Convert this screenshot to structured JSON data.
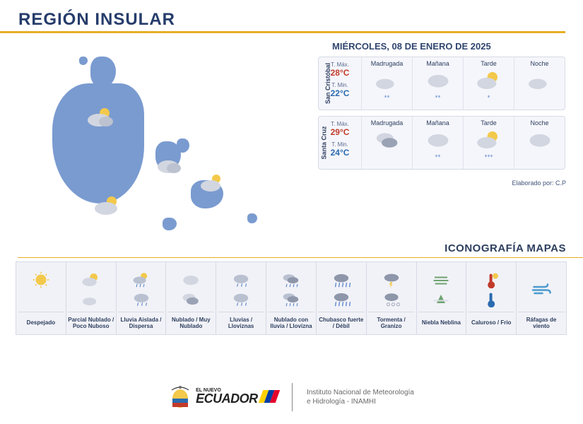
{
  "title": "REGIÓN INSULAR",
  "date": "MIÉRCOLES, 08 DE ENERO DE 2025",
  "credit": "Elaborado por: C.P",
  "iconography_title": "ICONOGRAFÍA MAPAS",
  "colors": {
    "title": "#263c6b",
    "underline": "#e7ae25",
    "island": "#7a9bd0",
    "panel_bg": "#f5f6fb",
    "border": "#d6dae6",
    "tmax": "#c23a2a",
    "tmin": "#2a6bb0",
    "flag_yellow": "#ffd100",
    "flag_blue": "#003da5",
    "flag_red": "#e4002b"
  },
  "periods": [
    "Madrugada",
    "Mañana",
    "Tarde",
    "Noche"
  ],
  "locations": [
    {
      "name": "San Cristóbal",
      "tmax_label": "T. Máx.",
      "tmax": "28°C",
      "tmin_label": "T. Min.",
      "tmin": "22°C",
      "forecast": [
        {
          "icon": "moon-cloud",
          "drops": "⁎⁎"
        },
        {
          "icon": "cloud",
          "drops": "⁎⁎"
        },
        {
          "icon": "sun-cloud",
          "drops": "⁎"
        },
        {
          "icon": "moon-cloud",
          "drops": ""
        }
      ]
    },
    {
      "name": "Santa Cruz",
      "tmax_label": "T. Máx.",
      "tmax": "29°C",
      "tmin_label": "T. Min.",
      "tmin": "24°C",
      "forecast": [
        {
          "icon": "clouds",
          "drops": ""
        },
        {
          "icon": "cloud",
          "drops": "⁎⁎"
        },
        {
          "icon": "sun-cloud",
          "drops": "⁎⁎⁎"
        },
        {
          "icon": "cloud",
          "drops": ""
        }
      ]
    }
  ],
  "legend": [
    {
      "label": "Despejado",
      "icons": [
        "sun",
        "moon"
      ]
    },
    {
      "label": "Parcial Nublado / Poco Nuboso",
      "icons": [
        "sun-cloud",
        "moon-cloud"
      ]
    },
    {
      "label": "Lluvia Aislada / Dispersa",
      "icons": [
        "sun-rain",
        "cloud-rain"
      ]
    },
    {
      "label": "Nublado / Muy Nublado",
      "icons": [
        "cloud",
        "clouds"
      ]
    },
    {
      "label": "Lluvias / Lloviznas",
      "icons": [
        "cloud-rain",
        "cloud-rain2"
      ]
    },
    {
      "label": "Nublado con lluvia / Llovizna",
      "icons": [
        "clouds-rain",
        "clouds-rain"
      ]
    },
    {
      "label": "Chubasco fuerte / Débil",
      "icons": [
        "heavy-rain",
        "heavy-rain"
      ]
    },
    {
      "label": "Tormenta / Granizo",
      "icons": [
        "storm",
        "hail"
      ]
    },
    {
      "label": "Niebla Neblina",
      "icons": [
        "fog",
        "fog2"
      ]
    },
    {
      "label": "Caluroso / Frio",
      "icons": [
        "therm-hot",
        "therm-cold"
      ]
    },
    {
      "label": "Ráfagas de viento",
      "icons": [
        "wind"
      ]
    }
  ],
  "footer": {
    "nuevo": "EL NUEVO",
    "brand": "ECUADOR",
    "institution_l1": "Instituto Nacional de Meteorología",
    "institution_l2": "e Hidrología - INAMHI"
  }
}
